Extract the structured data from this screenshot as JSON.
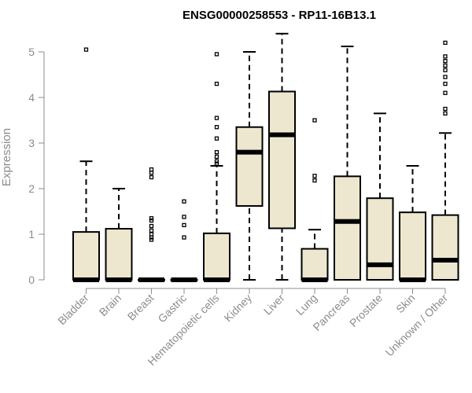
{
  "chart_data": {
    "type": "box",
    "title": "ENSG00000258553 - RP11-16B13.1",
    "xlabel": "",
    "ylabel": "Expression",
    "ylim": [
      0,
      5.4
    ],
    "yticks": [
      0,
      1,
      2,
      3,
      4,
      5
    ],
    "grid": false,
    "legend": "none",
    "box_color": "#ede7d0",
    "categories": [
      "Bladder",
      "Brain",
      "Breast",
      "Gastric",
      "Hematopoietic cells",
      "Kidney",
      "Liver",
      "Lung",
      "Pancreas",
      "Prostate",
      "Skin",
      "Unknown / Other"
    ],
    "boxes": [
      {
        "min": 0,
        "q1": 0,
        "median": 0,
        "q3": 1.05,
        "max": 2.6,
        "outliers": [
          5.05
        ]
      },
      {
        "min": 0,
        "q1": 0,
        "median": 0,
        "q3": 1.12,
        "max": 2.0,
        "outliers": []
      },
      {
        "min": 0,
        "q1": 0,
        "median": 0,
        "q3": 0,
        "max": 0,
        "outliers": [
          0.88,
          0.93,
          1.0,
          1.08,
          1.18,
          1.3,
          1.35,
          2.25,
          2.35,
          2.42
        ]
      },
      {
        "min": 0,
        "q1": 0,
        "median": 0,
        "q3": 0,
        "max": 0,
        "outliers": [
          0.93,
          1.2,
          1.38,
          1.72
        ]
      },
      {
        "min": 0,
        "q1": 0,
        "median": 0,
        "q3": 1.02,
        "max": 2.5,
        "outliers": [
          2.55,
          2.6,
          2.7,
          2.8,
          3.1,
          3.35,
          3.55,
          4.3,
          4.95
        ]
      },
      {
        "min": 0,
        "q1": 1.62,
        "median": 2.8,
        "q3": 3.35,
        "max": 5.0,
        "outliers": []
      },
      {
        "min": 0,
        "q1": 1.13,
        "median": 3.18,
        "q3": 4.13,
        "max": 5.4,
        "outliers": []
      },
      {
        "min": 0,
        "q1": 0,
        "median": 0,
        "q3": 0.68,
        "max": 1.1,
        "outliers": [
          2.18,
          2.28,
          3.5
        ]
      },
      {
        "min": 0,
        "q1": 0,
        "median": 1.28,
        "q3": 2.27,
        "max": 5.12,
        "outliers": []
      },
      {
        "min": 0,
        "q1": 0,
        "median": 0.33,
        "q3": 1.79,
        "max": 3.65,
        "outliers": []
      },
      {
        "min": 0,
        "q1": 0,
        "median": 0,
        "q3": 1.48,
        "max": 2.5,
        "outliers": []
      },
      {
        "min": 0,
        "q1": 0,
        "median": 0.43,
        "q3": 1.42,
        "max": 3.22,
        "outliers": [
          3.65,
          3.75,
          4.1,
          4.3,
          4.45,
          4.6,
          4.7,
          4.8,
          4.9,
          5.2
        ]
      }
    ]
  }
}
